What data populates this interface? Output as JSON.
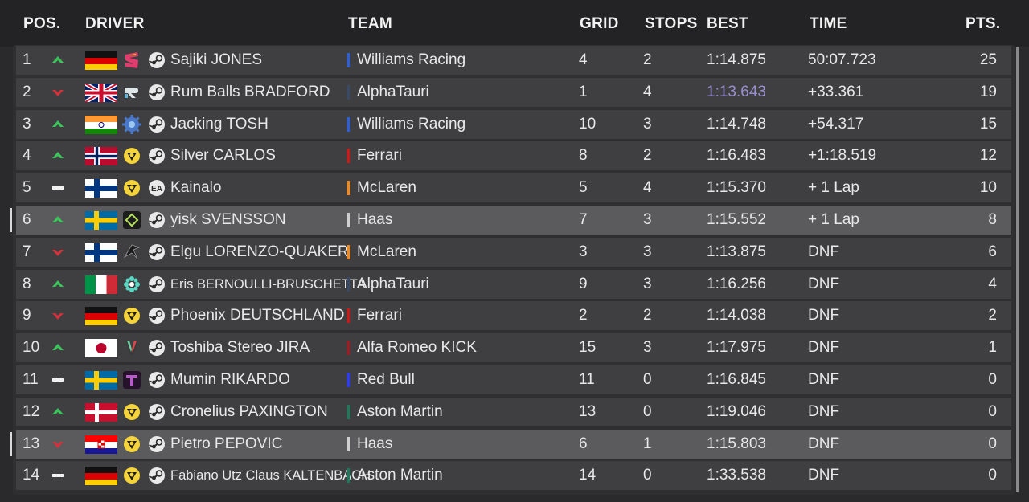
{
  "header": {
    "pos": "POS.",
    "driver": "DRIVER",
    "team": "TEAM",
    "grid": "GRID",
    "stops": "STOPS",
    "best": "BEST",
    "time": "TIME",
    "pts": "PTS."
  },
  "colors": {
    "up": "#3cc35a",
    "down": "#d2323c",
    "same": "#f0f0f0",
    "fastest_lap": "#9a8fd0",
    "Williams Racing": "#2f5fd8",
    "AlphaTauri": "#3a4a66",
    "Ferrari": "#d01818",
    "McLaren": "#f08a1e",
    "Haas": "#cfcfcf",
    "Alfa Romeo KICK": "#a01c24",
    "Red Bull": "#2b3cff",
    "Aston Martin": "#1f7a5c"
  },
  "rows": [
    {
      "pos": "1",
      "change": "up",
      "flag": "germany",
      "logo": "s-logo",
      "platform": "steam-icon",
      "name": "Sajiki JONES",
      "team": "Williams Racing",
      "grid": "4",
      "stops": "2",
      "best": "1:14.875",
      "time": "50:07.723",
      "pts": "25"
    },
    {
      "pos": "2",
      "change": "down",
      "flag": "united-kingdom",
      "logo": "r-logo",
      "platform": "steam-icon",
      "name": "Rum Balls BRADFORD",
      "team": "AlphaTauri",
      "grid": "1",
      "stops": "4",
      "best": "1:13.643",
      "time": "+33.361",
      "pts": "19",
      "fastest": true
    },
    {
      "pos": "3",
      "change": "up",
      "flag": "india",
      "logo": "gear-logo",
      "platform": "steam-icon",
      "name": "Jacking TOSH",
      "team": "Williams Racing",
      "grid": "10",
      "stops": "3",
      "best": "1:14.748",
      "time": "+54.317",
      "pts": "15"
    },
    {
      "pos": "4",
      "change": "up",
      "flag": "norway",
      "logo": "team-logo",
      "platform": "steam-icon",
      "name": "Silver CARLOS",
      "team": "Ferrari",
      "grid": "8",
      "stops": "2",
      "best": "1:16.483",
      "time": "+1:18.519",
      "pts": "12"
    },
    {
      "pos": "5",
      "change": "same",
      "flag": "finland",
      "logo": "team-logo",
      "platform": "ea-icon",
      "name": "Kainalo",
      "team": "McLaren",
      "grid": "5",
      "stops": "4",
      "best": "1:15.370",
      "time": "+ 1 Lap",
      "pts": "10"
    },
    {
      "pos": "6",
      "change": "up",
      "flag": "sweden",
      "logo": "diamond-logo",
      "platform": "steam-icon",
      "name": "yisk SVENSSON",
      "team": "Haas",
      "grid": "7",
      "stops": "3",
      "best": "1:15.552",
      "time": "+ 1 Lap",
      "pts": "8",
      "selected": true
    },
    {
      "pos": "7",
      "change": "down",
      "flag": "finland",
      "logo": "wing-logo",
      "platform": "steam-icon",
      "name": "Elgu LORENZO-QUAKER",
      "team": "McLaren",
      "grid": "3",
      "stops": "3",
      "best": "1:13.875",
      "time": "DNF",
      "pts": "6"
    },
    {
      "pos": "8",
      "change": "up",
      "flag": "italy",
      "logo": "flower-logo",
      "platform": "steam-icon",
      "name": "Eris BERNOULLI-BRUSCHETTA",
      "team": "AlphaTauri",
      "grid": "9",
      "stops": "3",
      "best": "1:16.256",
      "time": "DNF",
      "pts": "4",
      "small": true
    },
    {
      "pos": "9",
      "change": "down",
      "flag": "germany",
      "logo": "team-logo",
      "platform": "steam-icon",
      "name": "Phoenix DEUTSCHLAND",
      "team": "Ferrari",
      "grid": "2",
      "stops": "2",
      "best": "1:14.038",
      "time": "DNF",
      "pts": "2"
    },
    {
      "pos": "10",
      "change": "up",
      "flag": "japan",
      "logo": "v-logo",
      "platform": "steam-icon",
      "name": "Toshiba Stereo JIRA",
      "team": "Alfa Romeo KICK",
      "grid": "15",
      "stops": "3",
      "best": "1:17.975",
      "time": "DNF",
      "pts": "1"
    },
    {
      "pos": "11",
      "change": "same",
      "flag": "sweden",
      "logo": "t-logo",
      "platform": "steam-icon",
      "name": "Mumin RIKARDO",
      "team": "Red Bull",
      "grid": "11",
      "stops": "0",
      "best": "1:16.845",
      "time": "DNF",
      "pts": "0"
    },
    {
      "pos": "12",
      "change": "up",
      "flag": "denmark",
      "logo": "team-logo",
      "platform": "steam-icon",
      "name": "Cronelius PAXINGTON",
      "team": "Aston Martin",
      "grid": "13",
      "stops": "0",
      "best": "1:19.046",
      "time": "DNF",
      "pts": "0"
    },
    {
      "pos": "13",
      "change": "down",
      "flag": "croatia",
      "logo": "team-logo",
      "platform": "steam-icon",
      "name": "Pietro PEPOVIC",
      "team": "Haas",
      "grid": "6",
      "stops": "1",
      "best": "1:15.803",
      "time": "DNF",
      "pts": "0",
      "selected": true
    },
    {
      "pos": "14",
      "change": "same",
      "flag": "germany",
      "logo": "team-logo",
      "platform": "steam-icon",
      "name": "Fabiano Utz Claus KALTENBACH",
      "team": "Aston Martin",
      "grid": "14",
      "stops": "0",
      "best": "1:33.538",
      "time": "DNF",
      "pts": "0",
      "small": true
    }
  ]
}
